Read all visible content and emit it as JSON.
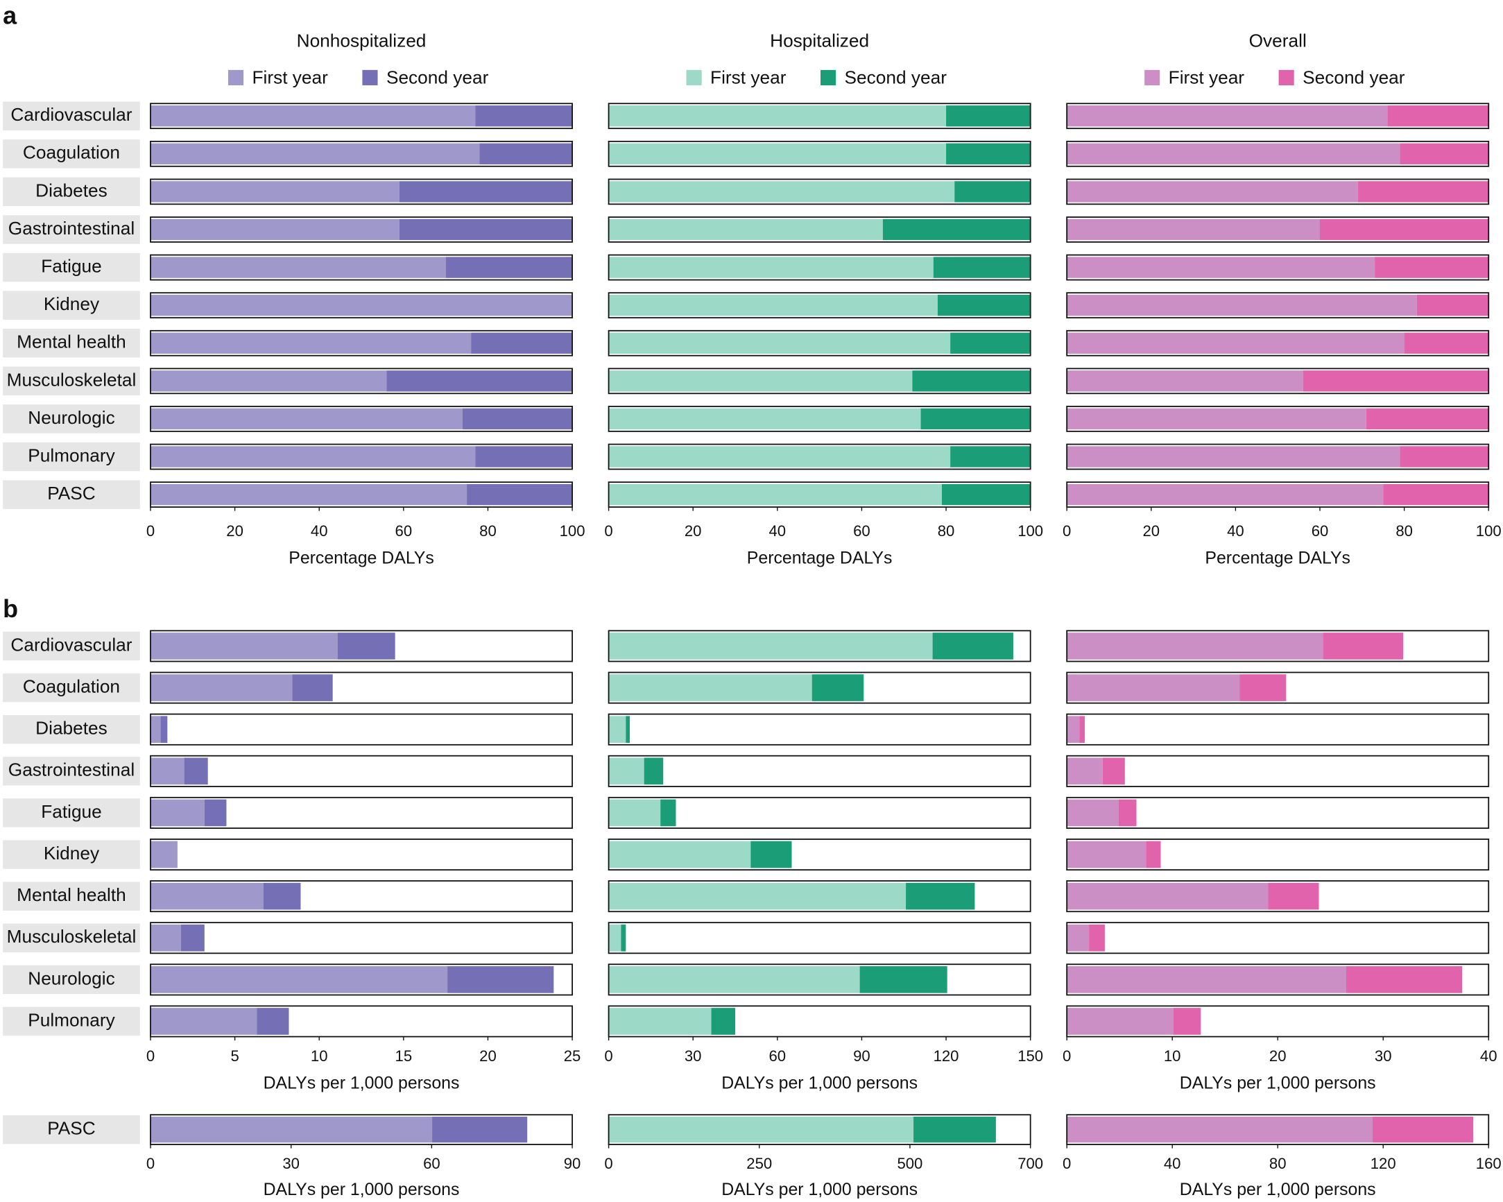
{
  "panel_labels": [
    "a",
    "b"
  ],
  "chart_data": [
    {
      "type": "bar",
      "stacked": true,
      "orientation": "horizontal",
      "title": "Nonhospitalized",
      "categories": [
        "Cardiovascular",
        "Coagulation",
        "Diabetes",
        "Gastrointestinal",
        "Fatigue",
        "Kidney",
        "Mental health",
        "Musculoskeletal",
        "Neurologic",
        "Pulmonary",
        "PASC"
      ],
      "series": [
        {
          "name": "First year",
          "color": "#9e98cb",
          "values": [
            77,
            78,
            59,
            59,
            70,
            100,
            76,
            56,
            74,
            77,
            75
          ]
        },
        {
          "name": "Second year",
          "color": "#7570b6",
          "values": [
            23,
            22,
            41,
            41,
            30,
            0,
            24,
            44,
            26,
            23,
            25
          ]
        }
      ],
      "xlim": [
        0,
        100
      ],
      "xticks": [
        0,
        20,
        40,
        60,
        80,
        100
      ],
      "xlabel": "Percentage DALYs"
    },
    {
      "type": "bar",
      "stacked": true,
      "orientation": "horizontal",
      "title": "Hospitalized",
      "series": [
        {
          "name": "First year",
          "color": "#9dd9c7",
          "values": [
            80,
            80,
            82,
            65,
            77,
            78,
            81,
            72,
            74,
            81,
            79
          ]
        },
        {
          "name": "Second year",
          "color": "#1b9e77",
          "values": [
            20,
            20,
            18,
            35,
            23,
            22,
            19,
            28,
            26,
            19,
            21
          ]
        }
      ],
      "xlim": [
        0,
        100
      ],
      "xticks": [
        0,
        20,
        40,
        60,
        80,
        100
      ],
      "xlabel": "Percentage DALYs"
    },
    {
      "type": "bar",
      "stacked": true,
      "orientation": "horizontal",
      "title": "Overall",
      "series": [
        {
          "name": "First year",
          "color": "#cc8fc5",
          "values": [
            76,
            79,
            69,
            60,
            73,
            83,
            80,
            56,
            71,
            79,
            75
          ]
        },
        {
          "name": "Second year",
          "color": "#e063ab",
          "values": [
            24,
            21,
            31,
            40,
            27,
            17,
            20,
            44,
            29,
            21,
            25
          ]
        }
      ],
      "xlim": [
        0,
        100
      ],
      "xticks": [
        0,
        20,
        40,
        60,
        80,
        100
      ],
      "xlabel": "Percentage DALYs"
    },
    {
      "type": "bar",
      "stacked": true,
      "orientation": "horizontal",
      "categories": [
        "Cardiovascular",
        "Coagulation",
        "Diabetes",
        "Gastrointestinal",
        "Fatigue",
        "Kidney",
        "Mental health",
        "Musculoskeletal",
        "Neurologic",
        "Pulmonary"
      ],
      "series": [
        {
          "color": "#9e98cb",
          "values": [
            11.1,
            8.4,
            0.6,
            2.0,
            3.2,
            1.6,
            6.7,
            1.8,
            17.6,
            6.3
          ]
        },
        {
          "color": "#7570b6",
          "values": [
            3.4,
            2.4,
            0.4,
            1.4,
            1.3,
            0,
            2.2,
            1.4,
            6.3,
            1.9
          ]
        }
      ],
      "xlim": [
        0,
        25
      ],
      "xticks": [
        0,
        5,
        10,
        15,
        20,
        25
      ],
      "xlabel": "DALYs per 1,000 persons"
    },
    {
      "type": "bar",
      "stacked": true,
      "orientation": "horizontal",
      "series": [
        {
          "color": "#9dd9c7",
          "values": [
            115.2,
            72.3,
            6.1,
            12.6,
            18.4,
            50.5,
            105.7,
            4.4,
            89.3,
            36.5
          ]
        },
        {
          "color": "#1b9e77",
          "values": [
            28.7,
            18.4,
            1.4,
            6.8,
            5.5,
            14.6,
            24.5,
            1.7,
            31.1,
            8.5
          ]
        }
      ],
      "xlim": [
        0,
        150
      ],
      "xticks": [
        0,
        30,
        60,
        90,
        120,
        150
      ],
      "xlabel": "DALYs per 1,000 persons"
    },
    {
      "type": "bar",
      "stacked": true,
      "orientation": "horizontal",
      "series": [
        {
          "color": "#cc8fc5",
          "values": [
            24.3,
            16.4,
            1.2,
            3.4,
            4.9,
            7.5,
            19.1,
            2.1,
            26.5,
            10.1
          ]
        },
        {
          "color": "#e063ab",
          "values": [
            7.6,
            4.4,
            0.5,
            2.1,
            1.7,
            1.4,
            4.8,
            1.5,
            11.0,
            2.6
          ]
        }
      ],
      "xlim": [
        0,
        40
      ],
      "xticks": [
        0,
        10,
        20,
        30,
        40
      ],
      "xlabel": "DALYs per 1,000 persons"
    },
    {
      "type": "bar",
      "stacked": true,
      "orientation": "horizontal",
      "categories": [
        "PASC"
      ],
      "series": [
        {
          "color": "#9e98cb",
          "values": [
            60.1
          ]
        },
        {
          "color": "#7570b6",
          "values": [
            20.3
          ]
        }
      ],
      "xlim": [
        0,
        90
      ],
      "xticks": [
        0,
        30,
        60,
        90
      ],
      "xlabel": "DALYs per 1,000 persons"
    },
    {
      "type": "bar",
      "stacked": true,
      "orientation": "horizontal",
      "series": [
        {
          "color": "#9dd9c7",
          "values": [
            505.9
          ]
        },
        {
          "color": "#1b9e77",
          "values": [
            136.8
          ]
        }
      ],
      "xlim": [
        0,
        700
      ],
      "xticks": [
        0,
        250,
        500,
        700
      ],
      "xlabel": "DALYs per 1,000 persons"
    },
    {
      "type": "bar",
      "stacked": true,
      "orientation": "horizontal",
      "series": [
        {
          "color": "#cc8fc5",
          "values": [
            116
          ]
        },
        {
          "color": "#e063ab",
          "values": [
            38.2
          ]
        }
      ],
      "xlim": [
        0,
        160
      ],
      "xticks": [
        0,
        40,
        80,
        120,
        160
      ],
      "xlabel": "DALYs per 1,000 persons"
    }
  ]
}
